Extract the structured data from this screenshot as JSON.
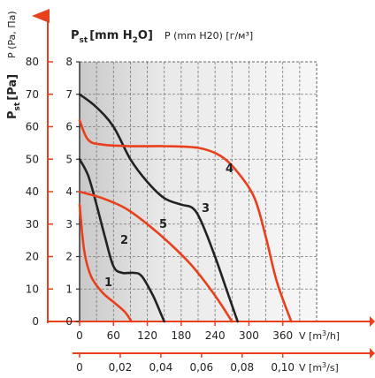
{
  "chart_data": {
    "type": "line",
    "title_h2o": "Pst [mm H2O]",
    "title_h2o_main": "P",
    "title_h2o_sub": "st",
    "title_h2o_unit": "[mm H",
    "title_h2o_sub2": "2",
    "title_h2o_end": "O]",
    "title_secondary": "P (mm H20) [г/м³]",
    "pa_axis_label": "P (Pa, Па)",
    "pa_axis_bold": "Pst [Pa]",
    "pa_axis_bold_main": "P",
    "pa_axis_bold_sub": "st",
    "pa_axis_bold_unit": "[Pa]",
    "xlabel_m3h": "V [m³/h]",
    "xlabel_m3s": "V [m³/s]",
    "pa_ticks": [
      "0",
      "10",
      "20",
      "30",
      "40",
      "50",
      "60",
      "70",
      "80"
    ],
    "mm_ticks": [
      "0",
      "1",
      "2",
      "3",
      "4",
      "5",
      "6",
      "7",
      "8"
    ],
    "x_ticks_m3h": [
      "0",
      "60",
      "120",
      "180",
      "240",
      "300",
      "360"
    ],
    "x_ticks_m3s": [
      "0",
      "0,02",
      "0,04",
      "0,06",
      "0,08",
      "0,10"
    ],
    "xlim_m3h": [
      0,
      420
    ],
    "ylim_mm": [
      0,
      8
    ],
    "grid": true,
    "series": [
      {
        "name": "1",
        "color": "#e8401c",
        "x": [
          0,
          8,
          20,
          40,
          60,
          80,
          92
        ],
        "y": [
          3.6,
          2.2,
          1.4,
          0.9,
          0.6,
          0.3,
          0
        ]
      },
      {
        "name": "2",
        "color": "#222222",
        "x": [
          0,
          15,
          30,
          45,
          60,
          75,
          95,
          110,
          130,
          145,
          150
        ],
        "y": [
          5.0,
          4.5,
          3.6,
          2.6,
          1.7,
          1.5,
          1.5,
          1.4,
          0.8,
          0.2,
          0
        ]
      },
      {
        "name": "3",
        "color": "#222222",
        "x": [
          0,
          30,
          60,
          90,
          120,
          150,
          180,
          200,
          215,
          240,
          260,
          280
        ],
        "y": [
          7.0,
          6.6,
          6.0,
          5.0,
          4.3,
          3.8,
          3.6,
          3.5,
          3.1,
          2.0,
          1.0,
          0
        ]
      },
      {
        "name": "4",
        "color": "#e8401c",
        "x": [
          0,
          15,
          40,
          90,
          150,
          210,
          250,
          280,
          310,
          330,
          350,
          375
        ],
        "y": [
          6.2,
          5.6,
          5.45,
          5.4,
          5.4,
          5.35,
          5.1,
          4.6,
          3.8,
          2.6,
          1.2,
          0
        ]
      },
      {
        "name": "5",
        "color": "#e8401c",
        "x": [
          0,
          40,
          80,
          120,
          160,
          200,
          240,
          270
        ],
        "y": [
          4.0,
          3.8,
          3.5,
          3.0,
          2.4,
          1.7,
          0.8,
          0
        ]
      }
    ]
  }
}
